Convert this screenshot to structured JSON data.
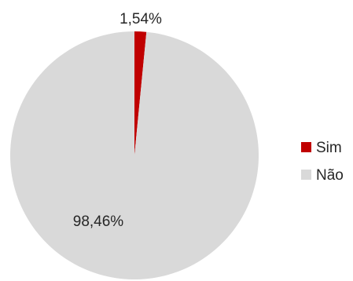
{
  "chart_data": {
    "type": "pie",
    "title": "",
    "categories": [
      "Sim",
      "Não"
    ],
    "values": [
      1.54,
      98.46
    ],
    "data_labels": [
      "1,54%",
      "98,46%"
    ],
    "colors": [
      "#c00000",
      "#d9d9d9"
    ],
    "legend_position": "right",
    "legend": [
      {
        "label": "Sim",
        "color": "#c00000"
      },
      {
        "label": "Não",
        "color": "#d9d9d9"
      }
    ]
  }
}
